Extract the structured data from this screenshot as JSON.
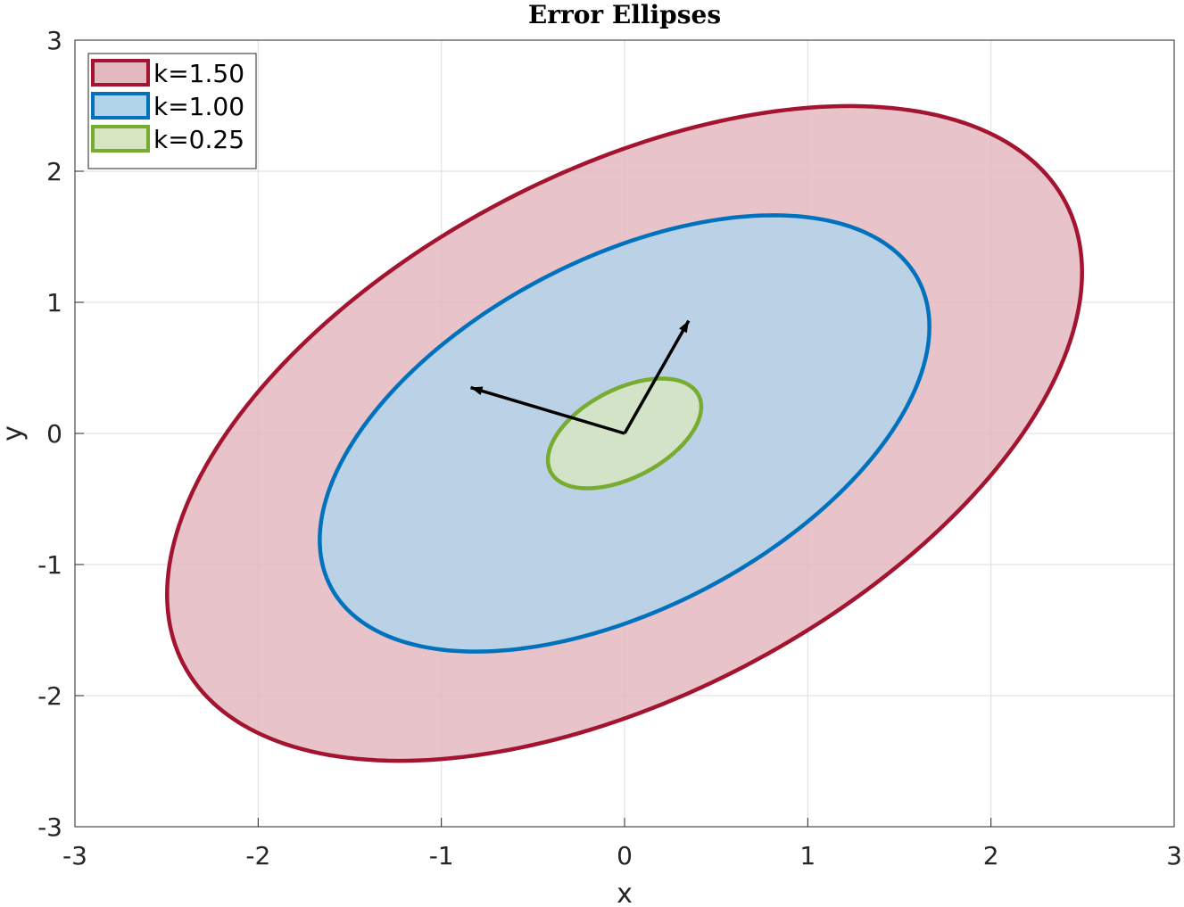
{
  "chart_data": {
    "type": "area",
    "title": "Error Ellipses",
    "xlabel": "x",
    "ylabel": "y",
    "xlim": [
      -3,
      3
    ],
    "ylim": [
      -3,
      3
    ],
    "xticks": [
      -3,
      -2,
      -1,
      0,
      1,
      2,
      3
    ],
    "yticks": [
      -3,
      -2,
      -1,
      0,
      1,
      2,
      3
    ],
    "grid": true,
    "legend_position": "top-left",
    "center": [
      0,
      0
    ],
    "axes": {
      "major": {
        "direction_deg": 60,
        "length": 0.57
      },
      "minor": {
        "direction_deg": 160,
        "length": 0.53
      }
    },
    "series": [
      {
        "name": "k=1.50",
        "scale": 1.5,
        "semi_major": 3.05,
        "semi_minor": 1.78,
        "angle_deg": 45,
        "edge_color": "#A2142F",
        "fill_color": "#E4B8BF"
      },
      {
        "name": "k=1.00",
        "scale": 1.0,
        "semi_major": 2.03,
        "semi_minor": 1.19,
        "angle_deg": 45,
        "edge_color": "#0072BD",
        "fill_color": "#B2D4EB"
      },
      {
        "name": "k=0.25",
        "scale": 0.25,
        "semi_major": 0.51,
        "semi_minor": 0.3,
        "angle_deg": 45,
        "edge_color": "#77AC30",
        "fill_color": "#D6E6C1"
      }
    ],
    "arrows": [
      {
        "from": [
          0,
          0
        ],
        "to": [
          0.35,
          0.86
        ]
      },
      {
        "from": [
          0,
          0
        ],
        "to": [
          -0.84,
          0.35
        ]
      }
    ]
  }
}
